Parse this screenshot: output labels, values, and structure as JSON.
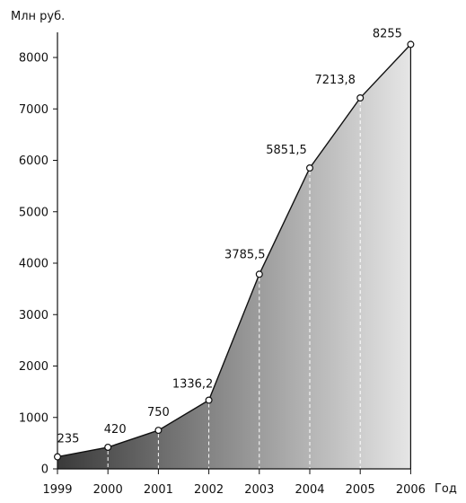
{
  "chart_data": {
    "type": "area",
    "x": [
      "1999",
      "2000",
      "2001",
      "2002",
      "2003",
      "2004",
      "2005",
      "2006"
    ],
    "values": [
      235,
      420,
      750,
      1336.2,
      3785.5,
      5851.5,
      7213.8,
      8255
    ],
    "data_labels": [
      "235",
      "420",
      "750",
      "1336,2",
      "3785,5",
      "5851,5",
      "7213,8",
      "8255"
    ],
    "ylabel": "Млн руб.",
    "xlabel": "Год",
    "ylim": [
      0,
      9000
    ],
    "yticks": [
      0,
      1000,
      2000,
      3000,
      4000,
      5000,
      6000,
      7000,
      8000
    ],
    "grid": false,
    "drop_lines": "dashed",
    "fill": "gradient dark-to-light",
    "colors": {
      "fill_dark": "#3a3a3a",
      "fill_light": "#e6e6e6",
      "line": "#111111",
      "marker_fill": "#ffffff"
    }
  }
}
